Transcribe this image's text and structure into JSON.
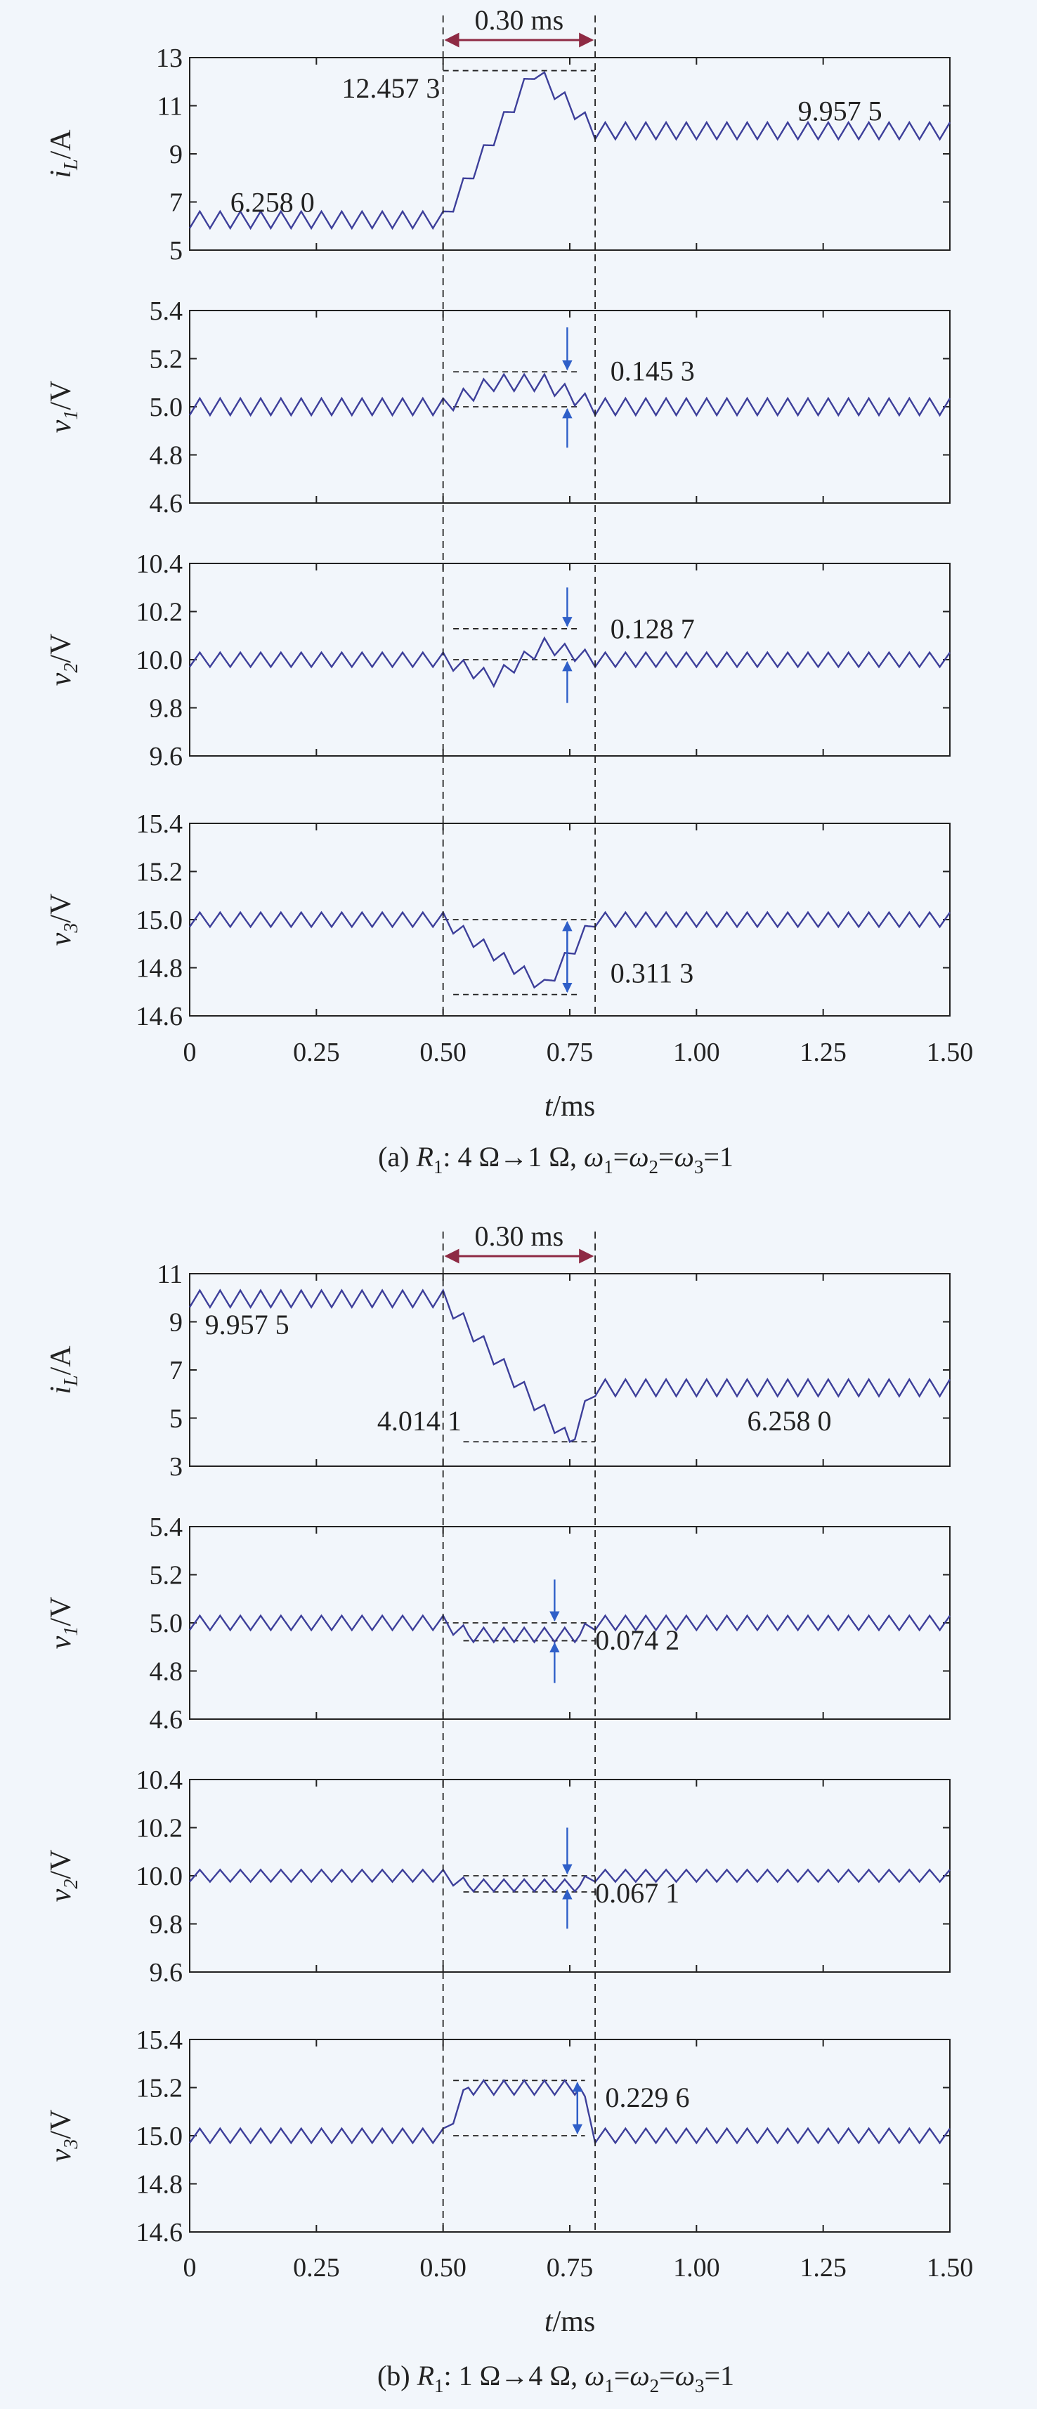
{
  "figure": {
    "panels": [
      {
        "id": "a",
        "caption_parts": [
          "(a) ",
          "R",
          "1",
          ": 4 Ω→1 Ω, ",
          "ω",
          "1",
          "=",
          "ω",
          "2",
          "=",
          "ω",
          "3",
          "=1"
        ],
        "duration_label": "0.30 ms",
        "xlabel_main": "t",
        "xlabel_unit": "/ms"
      },
      {
        "id": "b",
        "caption_parts": [
          "(b) ",
          "R",
          "1",
          ": 1 Ω→4 Ω, ",
          "ω",
          "1",
          "=",
          "ω",
          "2",
          "=",
          "ω",
          "3",
          "=1"
        ],
        "duration_label": "0.30 ms",
        "xlabel_main": "t",
        "xlabel_unit": "/ms"
      }
    ]
  },
  "chart_data": [
    {
      "type": "line",
      "panel": "a",
      "name": "iL",
      "ylabel": {
        "var": "i",
        "sub": "L",
        "unit": "/A"
      },
      "xlim": [
        0,
        1.5
      ],
      "ylim": [
        5,
        13
      ],
      "xticks": [
        "0",
        "0.25",
        "0.50",
        "0.75",
        "1.00",
        "1.25",
        "1.50"
      ],
      "yticks": [
        "5",
        "7",
        "9",
        "11",
        "13"
      ],
      "x": [
        0,
        0.5,
        0.68,
        0.8,
        1.5
      ],
      "y": [
        6.258,
        6.258,
        12.4573,
        9.9575,
        9.9575
      ],
      "ripple_amplitude": 0.35,
      "annotations": [
        {
          "text": "6.258 0",
          "x": 0.08,
          "y": 7.0
        },
        {
          "text": "12.457 3",
          "x": 0.3,
          "y": 11.75
        },
        {
          "text": "9.957 5",
          "x": 1.2,
          "y": 10.8
        }
      ],
      "ref_lines": [
        {
          "y": 12.4573,
          "x0": 0.5,
          "x1": 0.8
        }
      ],
      "arrows": []
    },
    {
      "type": "line",
      "panel": "a",
      "name": "v1",
      "ylabel": {
        "var": "v",
        "sub": "1",
        "unit": "/V"
      },
      "xlim": [
        0,
        1.5
      ],
      "ylim": [
        4.6,
        5.4
      ],
      "xticks": [],
      "yticks": [
        "4.6",
        "4.8",
        "5.0",
        "5.2",
        "5.4"
      ],
      "x": [
        0,
        0.5,
        0.6,
        0.7,
        0.8,
        1.5
      ],
      "y": [
        5.0,
        5.0,
        5.1,
        5.1,
        5.0,
        5.0
      ],
      "ripple_amplitude": 0.035,
      "annotations": [
        {
          "text": "0.145 3",
          "x": 0.83,
          "y": 5.15
        }
      ],
      "ref_lines": [
        {
          "y": 5.1453,
          "x0": 0.52,
          "x1": 0.77
        },
        {
          "y": 5.0,
          "x0": 0.52,
          "x1": 0.77
        }
      ],
      "arrows": [
        {
          "x": 0.745,
          "from": 5.33,
          "to": 5.155
        },
        {
          "x": 0.745,
          "from": 4.83,
          "to": 4.99
        }
      ]
    },
    {
      "type": "line",
      "panel": "a",
      "name": "v2",
      "ylabel": {
        "var": "v",
        "sub": "2",
        "unit": "/V"
      },
      "xlim": [
        0,
        1.5
      ],
      "ylim": [
        9.6,
        10.4
      ],
      "xticks": [],
      "yticks": [
        "9.6",
        "9.8",
        "10.0",
        "10.2",
        "10.4"
      ],
      "x": [
        0,
        0.5,
        0.6,
        0.7,
        0.8,
        1.5
      ],
      "y": [
        10.0,
        10.0,
        9.92,
        10.06,
        10.0,
        10.0
      ],
      "ripple_amplitude": 0.03,
      "annotations": [
        {
          "text": "0.128 7",
          "x": 0.83,
          "y": 10.13
        }
      ],
      "ref_lines": [
        {
          "y": 10.1287,
          "x0": 0.52,
          "x1": 0.77
        },
        {
          "y": 10.0,
          "x0": 0.52,
          "x1": 0.77
        }
      ],
      "arrows": [
        {
          "x": 0.745,
          "from": 10.3,
          "to": 10.14
        },
        {
          "x": 0.745,
          "from": 9.82,
          "to": 9.99
        }
      ]
    },
    {
      "type": "line",
      "panel": "a",
      "name": "v3",
      "ylabel": {
        "var": "v",
        "sub": "3",
        "unit": "/V"
      },
      "xlim": [
        0,
        1.5
      ],
      "ylim": [
        14.6,
        15.4
      ],
      "xticks": [
        "0",
        "0.25",
        "0.50",
        "0.75",
        "1.00",
        "1.25",
        "1.50"
      ],
      "yticks": [
        "14.6",
        "14.8",
        "15.0",
        "15.2",
        "15.4"
      ],
      "x": [
        0,
        0.5,
        0.7,
        0.8,
        1.5
      ],
      "y": [
        15.0,
        15.0,
        14.72,
        15.0,
        15.0
      ],
      "ripple_amplitude": 0.03,
      "annotations": [
        {
          "text": "0.311 3",
          "x": 0.83,
          "y": 14.78
        }
      ],
      "ref_lines": [
        {
          "y": 15.0,
          "x0": 0.5,
          "x1": 0.8
        },
        {
          "y": 14.6887,
          "x0": 0.52,
          "x1": 0.77
        }
      ],
      "arrows": [
        {
          "x": 0.745,
          "from": 14.72,
          "to": 14.99
        },
        {
          "x": 0.745,
          "from": 14.98,
          "to": 14.7
        }
      ]
    },
    {
      "type": "line",
      "panel": "b",
      "name": "iL",
      "ylabel": {
        "var": "i",
        "sub": "L",
        "unit": "/A"
      },
      "xlim": [
        0,
        1.5
      ],
      "ylim": [
        3,
        11
      ],
      "xticks": [],
      "yticks": [
        "3",
        "5",
        "7",
        "9",
        "11"
      ],
      "x": [
        0,
        0.5,
        0.75,
        0.8,
        1.5
      ],
      "y": [
        9.9575,
        9.9575,
        4.0141,
        6.258,
        6.258
      ],
      "ripple_amplitude": 0.35,
      "annotations": [
        {
          "text": "9.957 5",
          "x": 0.03,
          "y": 8.9
        },
        {
          "text": "4.014 1",
          "x": 0.37,
          "y": 4.9
        },
        {
          "text": "6.258 0",
          "x": 1.1,
          "y": 4.9
        }
      ],
      "ref_lines": [
        {
          "y": 4.0141,
          "x0": 0.54,
          "x1": 0.8
        }
      ],
      "arrows": []
    },
    {
      "type": "line",
      "panel": "b",
      "name": "v1",
      "ylabel": {
        "var": "v",
        "sub": "1",
        "unit": "/V"
      },
      "xlim": [
        0,
        1.5
      ],
      "ylim": [
        4.6,
        5.4
      ],
      "xticks": [],
      "yticks": [
        "4.6",
        "4.8",
        "5.0",
        "5.2",
        "5.4"
      ],
      "x": [
        0,
        0.5,
        0.55,
        0.77,
        0.8,
        1.5
      ],
      "y": [
        5.0,
        5.0,
        4.95,
        4.95,
        5.0,
        5.0
      ],
      "ripple_amplitude": 0.03,
      "annotations": [
        {
          "text": "0.074 2",
          "x": 0.8,
          "y": 4.93
        }
      ],
      "ref_lines": [
        {
          "y": 5.0,
          "x0": 0.5,
          "x1": 0.8
        },
        {
          "y": 4.9258,
          "x0": 0.54,
          "x1": 0.8
        }
      ],
      "arrows": [
        {
          "x": 0.72,
          "from": 5.18,
          "to": 5.01
        },
        {
          "x": 0.72,
          "from": 4.75,
          "to": 4.915
        }
      ]
    },
    {
      "type": "line",
      "panel": "b",
      "name": "v2",
      "ylabel": {
        "var": "v",
        "sub": "2",
        "unit": "/V"
      },
      "xlim": [
        0,
        1.5
      ],
      "ylim": [
        9.6,
        10.4
      ],
      "xticks": [],
      "yticks": [
        "9.6",
        "9.8",
        "10.0",
        "10.2",
        "10.4"
      ],
      "x": [
        0,
        0.5,
        0.55,
        0.77,
        0.8,
        1.5
      ],
      "y": [
        10.0,
        10.0,
        9.96,
        9.96,
        10.0,
        10.0
      ],
      "ripple_amplitude": 0.025,
      "annotations": [
        {
          "text": "0.067 1",
          "x": 0.8,
          "y": 9.93
        }
      ],
      "ref_lines": [
        {
          "y": 10.0,
          "x0": 0.54,
          "x1": 0.8
        },
        {
          "y": 9.9329,
          "x0": 0.54,
          "x1": 0.8
        }
      ],
      "arrows": [
        {
          "x": 0.745,
          "from": 10.2,
          "to": 10.01
        },
        {
          "x": 0.745,
          "from": 9.78,
          "to": 9.94
        }
      ]
    },
    {
      "type": "line",
      "panel": "b",
      "name": "v3",
      "ylabel": {
        "var": "v",
        "sub": "3",
        "unit": "/V"
      },
      "xlim": [
        0,
        1.5
      ],
      "ylim": [
        14.6,
        15.4
      ],
      "xticks": [
        "0",
        "0.25",
        "0.50",
        "0.75",
        "1.00",
        "1.25",
        "1.50"
      ],
      "yticks": [
        "14.6",
        "14.8",
        "15.0",
        "15.2",
        "15.4"
      ],
      "x": [
        0,
        0.5,
        0.55,
        0.77,
        0.8,
        1.5
      ],
      "y": [
        15.0,
        15.0,
        15.2,
        15.2,
        15.0,
        15.0
      ],
      "ripple_amplitude": 0.03,
      "annotations": [
        {
          "text": "0.229 6",
          "x": 0.82,
          "y": 15.16
        }
      ],
      "ref_lines": [
        {
          "y": 15.2296,
          "x0": 0.52,
          "x1": 0.78
        },
        {
          "y": 15.0,
          "x0": 0.52,
          "x1": 0.78
        }
      ],
      "arrows": [
        {
          "x": 0.765,
          "from": 15.02,
          "to": 15.22
        },
        {
          "x": 0.765,
          "from": 15.21,
          "to": 15.01
        }
      ]
    }
  ],
  "colors": {
    "signal": "#3d3f9a",
    "duration_arrow": "#8e2a44",
    "blue_arrow": "#2f5fc8",
    "ref_line": "#222222",
    "axis": "#222222",
    "background": "#f2f6fb"
  }
}
